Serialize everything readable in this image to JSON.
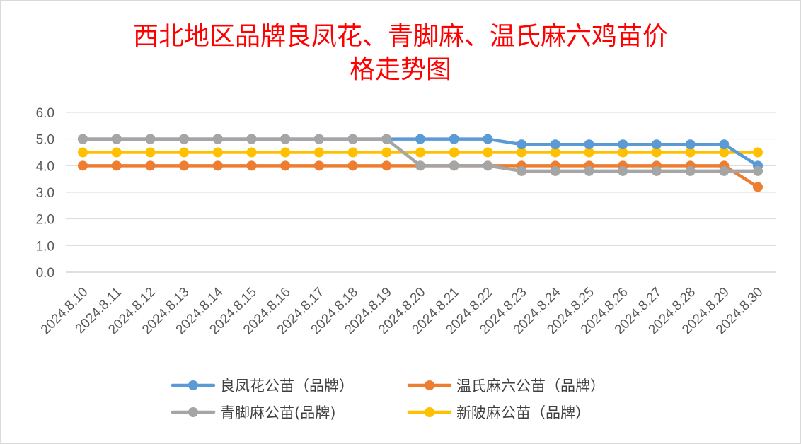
{
  "chart_data": {
    "type": "line",
    "title_lines": [
      "西北地区品牌良凤花、青脚麻、温氏麻六鸡苗价",
      "格走势图"
    ],
    "xlabel": "",
    "ylabel": "",
    "ylim": [
      0,
      6
    ],
    "yticks": [
      "0.0",
      "1.0",
      "2.0",
      "3.0",
      "4.0",
      "5.0",
      "6.0"
    ],
    "grid": true,
    "legend_position": "bottom",
    "categories": [
      "2024.8.10",
      "2024.8.11",
      "2024.8.12",
      "2024.8.13",
      "2024.8.14",
      "2024.8.15",
      "2024.8.16",
      "2024.8.17",
      "2024.8.18",
      "2024.8.19",
      "2024.8.20",
      "2024.8.21",
      "2024.8.22",
      "2024.8.23",
      "2024.8.24",
      "2024.8.25",
      "2024.8.26",
      "2024.8.27",
      "2024.8.28",
      "2024.8.29",
      "2024.8.30"
    ],
    "series": [
      {
        "name": "良凤花公苗（品牌）",
        "color": "#5b9bd5",
        "values": [
          5.0,
          5.0,
          5.0,
          5.0,
          5.0,
          5.0,
          5.0,
          5.0,
          5.0,
          5.0,
          5.0,
          5.0,
          5.0,
          4.8,
          4.8,
          4.8,
          4.8,
          4.8,
          4.8,
          4.8,
          4.0
        ]
      },
      {
        "name": "温氏麻六公苗（品牌）",
        "color": "#ed7d31",
        "values": [
          4.0,
          4.0,
          4.0,
          4.0,
          4.0,
          4.0,
          4.0,
          4.0,
          4.0,
          4.0,
          4.0,
          4.0,
          4.0,
          4.0,
          4.0,
          4.0,
          4.0,
          4.0,
          4.0,
          4.0,
          3.2
        ]
      },
      {
        "name": "青脚麻公苗(品牌)",
        "color": "#a5a5a5",
        "values": [
          5.0,
          5.0,
          5.0,
          5.0,
          5.0,
          5.0,
          5.0,
          5.0,
          5.0,
          5.0,
          4.0,
          4.0,
          4.0,
          3.8,
          3.8,
          3.8,
          3.8,
          3.8,
          3.8,
          3.8,
          3.8
        ]
      },
      {
        "name": "新陂麻公苗（品牌）",
        "color": "#ffc000",
        "values": [
          4.5,
          4.5,
          4.5,
          4.5,
          4.5,
          4.5,
          4.5,
          4.5,
          4.5,
          4.5,
          4.5,
          4.5,
          4.5,
          4.5,
          4.5,
          4.5,
          4.5,
          4.5,
          4.5,
          4.5,
          4.5
        ]
      }
    ],
    "legend_order": [
      0,
      1,
      2,
      3
    ]
  }
}
